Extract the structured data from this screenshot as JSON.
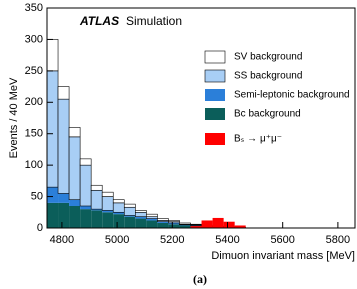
{
  "chart_data": {
    "type": "histogram",
    "annotation": "ATLAS",
    "annotation_sub": "Simulation",
    "xlabel": "Dimuon invariant mass [MeV]",
    "ylabel": "Events / 40 MeV",
    "caption": "(a)",
    "bins": [
      4746,
      4786,
      4826,
      4866,
      4906,
      4946,
      4986,
      5026,
      5066,
      5106,
      5146,
      5186,
      5226,
      5266,
      5306,
      5346,
      5386,
      5426,
      5466,
      5506,
      5546,
      5586
    ],
    "series": [
      {
        "name": "Bc background",
        "color": "#0b5e5a",
        "values": [
          40,
          40,
          35,
          30,
          28,
          25,
          22,
          18,
          15,
          12,
          8,
          6,
          4,
          3,
          2,
          1,
          1,
          0,
          0,
          0,
          0
        ]
      },
      {
        "name": "Semi-leptonic background",
        "color": "#2b7fd9",
        "values": [
          25,
          15,
          10,
          5,
          2,
          3,
          3,
          2,
          3,
          3,
          2,
          2,
          1,
          1,
          1,
          1,
          0,
          0,
          0,
          0,
          0
        ]
      },
      {
        "name": "SS background",
        "color": "#a8cef5",
        "values": [
          185,
          150,
          100,
          65,
          30,
          22,
          15,
          13,
          7,
          3,
          2,
          2,
          1,
          1,
          0,
          0,
          0,
          0,
          0,
          0,
          0
        ]
      },
      {
        "name": "SV background",
        "color": "#ffffff",
        "values": [
          50,
          20,
          15,
          10,
          8,
          7,
          5,
          5,
          3,
          4,
          3,
          2,
          2,
          1,
          1,
          1,
          1,
          1,
          0,
          0,
          0
        ]
      }
    ],
    "signal": {
      "name": "Bₛ → μ⁺μ⁻",
      "color": "#ff0000",
      "values": [
        0,
        0,
        0,
        0,
        0,
        0,
        0,
        0,
        0,
        0,
        0,
        0,
        0,
        3,
        12,
        16,
        10,
        4,
        0,
        0,
        0
      ]
    },
    "xlim": [
      4746,
      5862
    ],
    "ylim": [
      0,
      350
    ],
    "xticks": [
      4800,
      5000,
      5200,
      5400,
      5600,
      5800
    ],
    "yticks": [
      0,
      50,
      100,
      150,
      200,
      250,
      300,
      350
    ]
  }
}
